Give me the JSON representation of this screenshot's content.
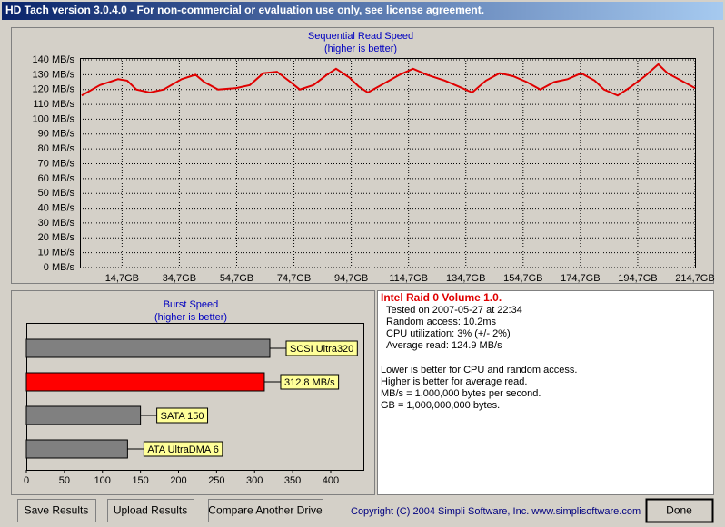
{
  "window": {
    "title": "HD Tach version 3.0.4.0  - For non-commercial or evaluation use only, see license agreement."
  },
  "chart_data": [
    {
      "type": "line",
      "title": "Sequential Read Speed",
      "subtitle": "(higher is better)",
      "x": [
        0.6,
        7,
        13.3,
        16.5,
        19.7,
        24.4,
        29.2,
        35.5,
        40.3,
        43.4,
        48.2,
        54.5,
        59.3,
        64,
        68.8,
        73.5,
        76.7,
        81.5,
        86.2,
        89.4,
        94.1,
        97.3,
        100.5,
        105.2,
        111.6,
        116.3,
        121.1,
        127.4,
        132.2,
        136.9,
        141.7,
        146.5,
        151.2,
        156,
        160.7,
        165.5,
        170.2,
        175,
        179.7,
        182.9,
        187.7,
        192.4,
        197.2,
        201.9,
        205.1,
        209.9,
        214.7
      ],
      "values": [
        116,
        123,
        127,
        126,
        120,
        118,
        120,
        127,
        130,
        125,
        120,
        121,
        123,
        131,
        132,
        125,
        120,
        123,
        130,
        134,
        128,
        122,
        118,
        123,
        130,
        134,
        130,
        126,
        122,
        118,
        126,
        131,
        129,
        125,
        120,
        125,
        127,
        131,
        126,
        120,
        116,
        122,
        129,
        137,
        131,
        126,
        121
      ],
      "color": "#e00000",
      "xlim": [
        0,
        214.7
      ],
      "xticks": [
        {
          "value": 14.7,
          "label": "14,7GB"
        },
        {
          "value": 34.7,
          "label": "34,7GB"
        },
        {
          "value": 54.7,
          "label": "54,7GB"
        },
        {
          "value": 74.7,
          "label": "74,7GB"
        },
        {
          "value": 94.7,
          "label": "94,7GB"
        },
        {
          "value": 114.7,
          "label": "114,7GB"
        },
        {
          "value": 134.7,
          "label": "134,7GB"
        },
        {
          "value": 154.7,
          "label": "154,7GB"
        },
        {
          "value": 174.7,
          "label": "174,7GB"
        },
        {
          "value": 194.7,
          "label": "194,7GB"
        },
        {
          "value": 214.7,
          "label": "214,7GB"
        }
      ],
      "ylim": [
        0,
        140
      ],
      "yticks": [
        {
          "value": 0,
          "label": "0 MB/s"
        },
        {
          "value": 10,
          "label": "10 MB/s"
        },
        {
          "value": 20,
          "label": "20 MB/s"
        },
        {
          "value": 30,
          "label": "30 MB/s"
        },
        {
          "value": 40,
          "label": "40 MB/s"
        },
        {
          "value": 50,
          "label": "50 MB/s"
        },
        {
          "value": 60,
          "label": "60 MB/s"
        },
        {
          "value": 70,
          "label": "70 MB/s"
        },
        {
          "value": 80,
          "label": "80 MB/s"
        },
        {
          "value": 90,
          "label": "90 MB/s"
        },
        {
          "value": 100,
          "label": "100 MB/s"
        },
        {
          "value": 110,
          "label": "110 MB/s"
        },
        {
          "value": 120,
          "label": "120 MB/s"
        },
        {
          "value": 130,
          "label": "130 MB/s"
        },
        {
          "value": 140,
          "label": "140 MB/s"
        }
      ],
      "grid": true
    },
    {
      "type": "hbar",
      "title": "Burst Speed",
      "subtitle": "(higher is better)",
      "categories": [
        "SCSI Ultra320",
        "312.8 MB/s",
        "SATA 150",
        "ATA UltraDMA 6"
      ],
      "values": [
        320,
        312.8,
        150,
        133
      ],
      "colors": [
        "#808080",
        "#ff0000",
        "#808080",
        "#808080"
      ],
      "xlim": [
        0,
        443
      ],
      "xticks": [
        0,
        50,
        100,
        150,
        200,
        250,
        300,
        350,
        400
      ]
    }
  ],
  "info": {
    "drive": "Intel Raid 0 Volume 1.0.",
    "details": [
      "Tested on 2007-05-27 at 22:34",
      "Random access: 10.2ms",
      "CPU utilization: 3% (+/- 2%)",
      "Average read: 124.9 MB/s"
    ],
    "notes": [
      "Lower is better for CPU and random access.",
      "Higher is better for average read.",
      "MB/s = 1,000,000 bytes per second.",
      "GB = 1,000,000,000 bytes."
    ]
  },
  "copyright": "Copyright (C) 2004 Simpli Software, Inc. www.simplisoftware.com",
  "buttons": [
    "Save Results",
    "Upload Results",
    "Compare Another Drive",
    "Done"
  ]
}
